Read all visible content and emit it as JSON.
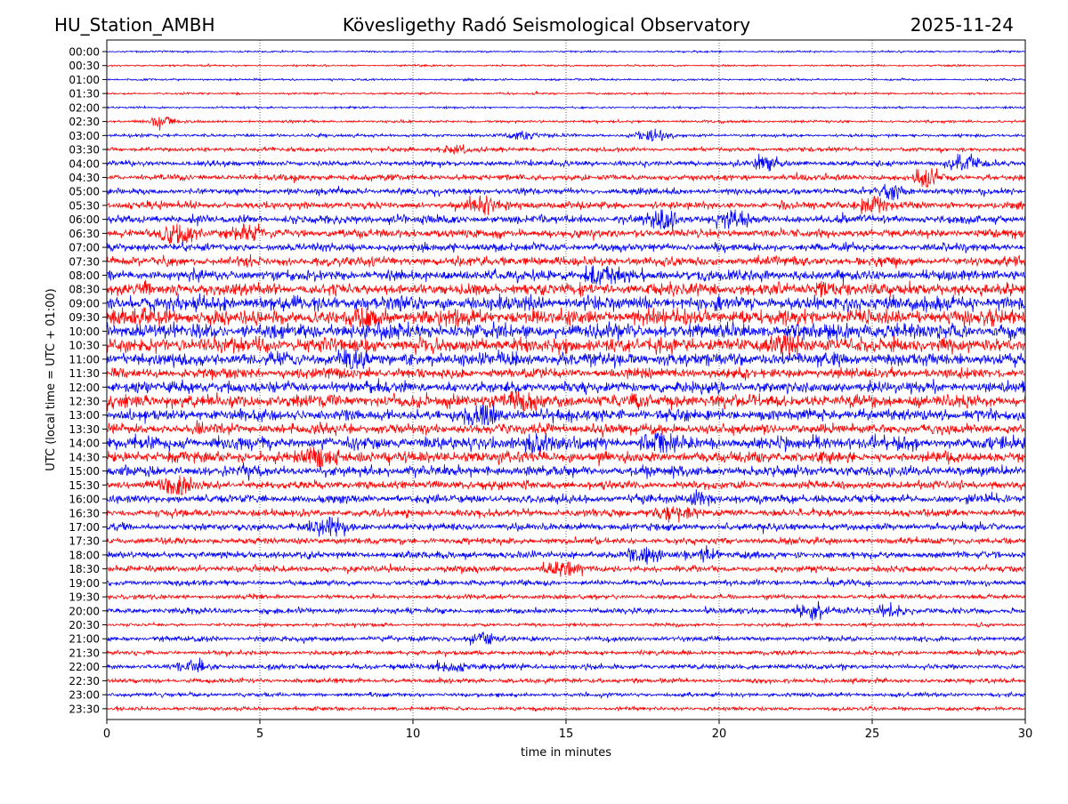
{
  "header": {
    "station": "HU_Station_AMBH",
    "observatory": "Kövesligethy Radó Seismological Observatory",
    "date": "2025-11-24"
  },
  "chart_data": {
    "type": "line",
    "subtype": "helicorder",
    "xlabel": "time in minutes",
    "ylabel": "UTC (local time = UTC + 01:00)",
    "xlim": [
      0,
      30
    ],
    "x_ticks": [
      0,
      5,
      10,
      15,
      20,
      25,
      30
    ],
    "x_tick_labels": [
      "0",
      "5",
      "10",
      "15",
      "20",
      "25",
      "30"
    ],
    "grid": "vertical dotted",
    "row_labels": [
      "00:00",
      "00:30",
      "01:00",
      "01:30",
      "02:00",
      "02:30",
      "03:00",
      "03:30",
      "04:00",
      "04:30",
      "05:00",
      "05:30",
      "06:00",
      "06:30",
      "07:00",
      "07:30",
      "08:00",
      "08:30",
      "09:00",
      "09:30",
      "10:00",
      "10:30",
      "11:00",
      "11:30",
      "12:00",
      "12:30",
      "13:00",
      "13:30",
      "14:00",
      "14:30",
      "15:00",
      "15:30",
      "16:00",
      "16:30",
      "17:00",
      "17:30",
      "18:00",
      "18:30",
      "19:00",
      "19:30",
      "20:00",
      "20:30",
      "21:00",
      "21:30",
      "22:00",
      "22:30",
      "23:00",
      "23:30"
    ],
    "line_colors": [
      "#0000ff",
      "#ff0000"
    ],
    "row_noise_level": [
      0.1,
      0.1,
      0.11,
      0.11,
      0.11,
      0.14,
      0.17,
      0.22,
      0.3,
      0.32,
      0.34,
      0.4,
      0.45,
      0.45,
      0.42,
      0.5,
      0.58,
      0.65,
      0.8,
      0.85,
      0.82,
      0.8,
      0.7,
      0.55,
      0.6,
      0.72,
      0.62,
      0.55,
      0.7,
      0.6,
      0.55,
      0.45,
      0.45,
      0.4,
      0.4,
      0.35,
      0.38,
      0.35,
      0.3,
      0.25,
      0.3,
      0.18,
      0.28,
      0.25,
      0.28,
      0.25,
      0.22,
      0.2
    ],
    "events": [
      {
        "row": 5,
        "minute": 1.7,
        "amp": 0.6
      },
      {
        "row": 6,
        "minute": 13.5,
        "amp": 0.6
      },
      {
        "row": 6,
        "minute": 17.8,
        "amp": 0.7
      },
      {
        "row": 7,
        "minute": 11.5,
        "amp": 0.6
      },
      {
        "row": 8,
        "minute": 21.5,
        "amp": 0.7
      },
      {
        "row": 8,
        "minute": 28.0,
        "amp": 1.0
      },
      {
        "row": 9,
        "minute": 26.8,
        "amp": 0.9
      },
      {
        "row": 10,
        "minute": 25.8,
        "amp": 0.8
      },
      {
        "row": 11,
        "minute": 12.2,
        "amp": 0.9
      },
      {
        "row": 11,
        "minute": 25.0,
        "amp": 1.0
      },
      {
        "row": 12,
        "minute": 18.3,
        "amp": 1.1
      },
      {
        "row": 12,
        "minute": 20.3,
        "amp": 1.0
      },
      {
        "row": 13,
        "minute": 2.3,
        "amp": 1.1
      },
      {
        "row": 13,
        "minute": 4.5,
        "amp": 0.7
      },
      {
        "row": 16,
        "minute": 16.0,
        "amp": 0.9
      },
      {
        "row": 17,
        "minute": 23.5,
        "amp": 1.0
      },
      {
        "row": 19,
        "minute": 8.5,
        "amp": 0.9
      },
      {
        "row": 21,
        "minute": 22.2,
        "amp": 1.3
      },
      {
        "row": 22,
        "minute": 8.0,
        "amp": 1.1
      },
      {
        "row": 25,
        "minute": 13.5,
        "amp": 1.0
      },
      {
        "row": 26,
        "minute": 12.3,
        "amp": 1.3
      },
      {
        "row": 28,
        "minute": 14.0,
        "amp": 1.1
      },
      {
        "row": 28,
        "minute": 18.0,
        "amp": 0.9
      },
      {
        "row": 29,
        "minute": 7.0,
        "amp": 1.2
      },
      {
        "row": 31,
        "minute": 2.2,
        "amp": 1.1
      },
      {
        "row": 32,
        "minute": 19.5,
        "amp": 0.8
      },
      {
        "row": 33,
        "minute": 18.3,
        "amp": 1.0
      },
      {
        "row": 34,
        "minute": 7.2,
        "amp": 1.0
      },
      {
        "row": 36,
        "minute": 17.5,
        "amp": 0.8
      },
      {
        "row": 36,
        "minute": 19.5,
        "amp": 0.8
      },
      {
        "row": 37,
        "minute": 14.8,
        "amp": 0.9
      },
      {
        "row": 40,
        "minute": 23.0,
        "amp": 1.0
      },
      {
        "row": 40,
        "minute": 25.6,
        "amp": 0.8
      },
      {
        "row": 42,
        "minute": 12.3,
        "amp": 0.6
      },
      {
        "row": 44,
        "minute": 11.2,
        "amp": 0.7
      },
      {
        "row": 44,
        "minute": 2.9,
        "amp": 0.6
      }
    ]
  }
}
